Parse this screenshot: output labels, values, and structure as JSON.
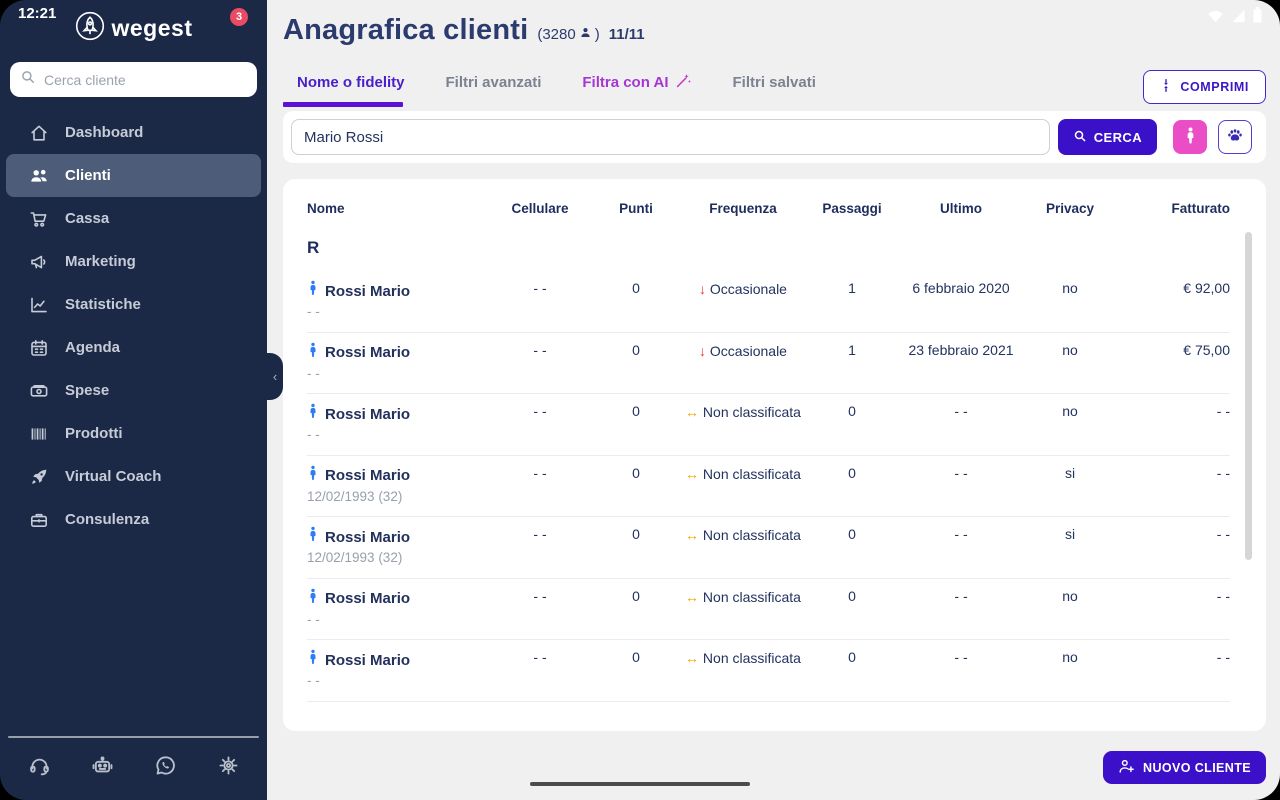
{
  "status": {
    "time": "12:21"
  },
  "brand": {
    "name": "wegest",
    "badge": "3",
    "logo_icon": "rocket-circle"
  },
  "sidebar": {
    "search_placeholder": "Cerca cliente",
    "items": [
      {
        "id": "dashboard",
        "icon": "home",
        "label": "Dashboard",
        "active": false
      },
      {
        "id": "clienti",
        "icon": "users",
        "label": "Clienti",
        "active": true
      },
      {
        "id": "cassa",
        "icon": "cart",
        "label": "Cassa",
        "active": false
      },
      {
        "id": "marketing",
        "icon": "megaphone",
        "label": "Marketing",
        "active": false
      },
      {
        "id": "statistiche",
        "icon": "stats",
        "label": "Statistiche",
        "active": false
      },
      {
        "id": "agenda",
        "icon": "calendar",
        "label": "Agenda",
        "active": false
      },
      {
        "id": "spese",
        "icon": "money",
        "label": "Spese",
        "active": false
      },
      {
        "id": "prodotti",
        "icon": "barcode",
        "label": "Prodotti",
        "active": false
      },
      {
        "id": "virtual-coach",
        "icon": "rocket",
        "label": "Virtual Coach",
        "active": false
      },
      {
        "id": "consulenza",
        "icon": "briefcase",
        "label": "Consulenza",
        "active": false
      }
    ],
    "footer_icons": [
      "headset",
      "robot",
      "whatsapp",
      "gear"
    ],
    "collapse_chevron": "‹"
  },
  "header": {
    "title": "Anagrafica clienti",
    "count_open": "(3280",
    "count_close": ")",
    "pages": "11/11",
    "collapse_button": "COMPRIMI"
  },
  "tabs": [
    {
      "label": "Nome o fidelity",
      "state": "active"
    },
    {
      "label": "Filtri avanzati",
      "state": "normal"
    },
    {
      "label": "Filtra con AI",
      "state": "accent",
      "icon": "wand"
    },
    {
      "label": "Filtri salvati",
      "state": "normal"
    }
  ],
  "toolbar": {
    "search_value": "Mario Rossi",
    "search_button": "CERCA"
  },
  "table": {
    "columns": [
      "Nome",
      "Cellulare",
      "Punti",
      "Frequenza",
      "Passaggi",
      "Ultimo",
      "Privacy",
      "Fatturato"
    ],
    "group_letter": "R",
    "rows": [
      {
        "name": "Rossi Mario",
        "sub": "- -",
        "cellulare": "- -",
        "punti": "0",
        "freq_dir": "down",
        "freq_label": "Occasionale",
        "passaggi": "1",
        "ultimo": "6 febbraio 2020",
        "privacy": "no",
        "fatturato": "€ 92,00"
      },
      {
        "name": "Rossi Mario",
        "sub": "- -",
        "cellulare": "- -",
        "punti": "0",
        "freq_dir": "down",
        "freq_label": "Occasionale",
        "passaggi": "1",
        "ultimo": "23 febbraio 2021",
        "privacy": "no",
        "fatturato": "€ 75,00"
      },
      {
        "name": "Rossi Mario",
        "sub": "- -",
        "cellulare": "- -",
        "punti": "0",
        "freq_dir": "lr",
        "freq_label": "Non classificata",
        "passaggi": "0",
        "ultimo": "- -",
        "privacy": "no",
        "fatturato": "- -"
      },
      {
        "name": "Rossi Mario",
        "sub": "12/02/1993 (32)",
        "cellulare": "- -",
        "punti": "0",
        "freq_dir": "lr",
        "freq_label": "Non classificata",
        "passaggi": "0",
        "ultimo": "- -",
        "privacy": "si",
        "fatturato": "- -"
      },
      {
        "name": "Rossi Mario",
        "sub": "12/02/1993 (32)",
        "cellulare": "- -",
        "punti": "0",
        "freq_dir": "lr",
        "freq_label": "Non classificata",
        "passaggi": "0",
        "ultimo": "- -",
        "privacy": "si",
        "fatturato": "- -"
      },
      {
        "name": "Rossi Mario",
        "sub": "- -",
        "cellulare": "- -",
        "punti": "0",
        "freq_dir": "lr",
        "freq_label": "Non classificata",
        "passaggi": "0",
        "ultimo": "- -",
        "privacy": "no",
        "fatturato": "- -"
      },
      {
        "name": "Rossi Mario",
        "sub": "- -",
        "cellulare": "- -",
        "punti": "0",
        "freq_dir": "lr",
        "freq_label": "Non classificata",
        "passaggi": "0",
        "ultimo": "- -",
        "privacy": "no",
        "fatturato": "- -"
      }
    ],
    "freq_arrows": {
      "down": "↓",
      "lr": "↔"
    }
  },
  "actions": {
    "new_client": "NUOVO CLIENTE"
  },
  "colors": {
    "sidebar_bg": "#1b2947",
    "sidebar_active": "#4d5c79",
    "accent_indigo": "#3a10c8",
    "pink": "#ea4dc6",
    "ai_purple": "#a636d4",
    "tab_active": "#4a1fcb",
    "underline": "#5a13d4",
    "badge_red": "#e84b63",
    "arrow_red": "#e03a2f",
    "arrow_orange": "#f5a800",
    "person_blue": "#2e7cf6",
    "text_navy": "#233360",
    "main_bg": "#f0f0f1"
  }
}
